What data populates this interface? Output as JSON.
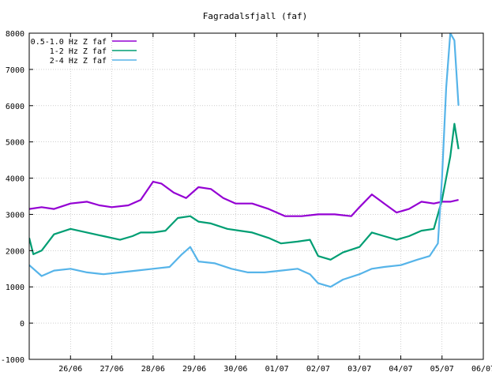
{
  "chart_data": {
    "type": "line",
    "title": "Fagradalsfjall (faf)",
    "xlabel": "",
    "ylabel": "",
    "ylim": [
      -1000,
      8000
    ],
    "yticks": [
      -1000,
      0,
      1000,
      2000,
      3000,
      4000,
      5000,
      6000,
      7000,
      8000
    ],
    "xlim_days": [
      0,
      11
    ],
    "xticks": [
      {
        "label": "26/06",
        "day": 1
      },
      {
        "label": "27/06",
        "day": 2
      },
      {
        "label": "28/06",
        "day": 3
      },
      {
        "label": "29/06",
        "day": 4
      },
      {
        "label": "30/06",
        "day": 5
      },
      {
        "label": "01/07",
        "day": 6
      },
      {
        "label": "02/07",
        "day": 7
      },
      {
        "label": "03/07",
        "day": 8
      },
      {
        "label": "04/07",
        "day": 9
      },
      {
        "label": "05/07",
        "day": 10
      },
      {
        "label": "06/07",
        "day": 11
      }
    ],
    "grid": true,
    "legend_position": "top-left",
    "series": [
      {
        "name": "0.5-1.0 Hz Z faf",
        "color": "#9400d3",
        "points": [
          [
            0.0,
            3150
          ],
          [
            0.3,
            3200
          ],
          [
            0.6,
            3150
          ],
          [
            1.0,
            3300
          ],
          [
            1.4,
            3350
          ],
          [
            1.7,
            3250
          ],
          [
            2.0,
            3200
          ],
          [
            2.4,
            3250
          ],
          [
            2.7,
            3400
          ],
          [
            3.0,
            3900
          ],
          [
            3.2,
            3850
          ],
          [
            3.5,
            3600
          ],
          [
            3.8,
            3450
          ],
          [
            4.1,
            3750
          ],
          [
            4.4,
            3700
          ],
          [
            4.7,
            3450
          ],
          [
            5.0,
            3300
          ],
          [
            5.4,
            3300
          ],
          [
            5.8,
            3150
          ],
          [
            6.2,
            2950
          ],
          [
            6.6,
            2950
          ],
          [
            7.0,
            3000
          ],
          [
            7.4,
            3000
          ],
          [
            7.8,
            2950
          ],
          [
            8.0,
            3200
          ],
          [
            8.3,
            3550
          ],
          [
            8.6,
            3300
          ],
          [
            8.9,
            3050
          ],
          [
            9.2,
            3150
          ],
          [
            9.5,
            3350
          ],
          [
            9.8,
            3300
          ],
          [
            10.0,
            3350
          ],
          [
            10.2,
            3350
          ],
          [
            10.4,
            3400
          ]
        ]
      },
      {
        "name": "1-2 Hz Z faf",
        "color": "#009e73",
        "points": [
          [
            0.0,
            2350
          ],
          [
            0.1,
            1900
          ],
          [
            0.3,
            2000
          ],
          [
            0.6,
            2450
          ],
          [
            1.0,
            2600
          ],
          [
            1.4,
            2500
          ],
          [
            1.8,
            2400
          ],
          [
            2.2,
            2300
          ],
          [
            2.5,
            2400
          ],
          [
            2.7,
            2500
          ],
          [
            3.0,
            2500
          ],
          [
            3.3,
            2550
          ],
          [
            3.6,
            2900
          ],
          [
            3.9,
            2950
          ],
          [
            4.1,
            2800
          ],
          [
            4.4,
            2750
          ],
          [
            4.8,
            2600
          ],
          [
            5.1,
            2550
          ],
          [
            5.4,
            2500
          ],
          [
            5.8,
            2350
          ],
          [
            6.1,
            2200
          ],
          [
            6.5,
            2250
          ],
          [
            6.8,
            2300
          ],
          [
            7.0,
            1850
          ],
          [
            7.3,
            1750
          ],
          [
            7.6,
            1950
          ],
          [
            8.0,
            2100
          ],
          [
            8.3,
            2500
          ],
          [
            8.6,
            2400
          ],
          [
            8.9,
            2300
          ],
          [
            9.2,
            2400
          ],
          [
            9.5,
            2550
          ],
          [
            9.8,
            2600
          ],
          [
            10.0,
            3400
          ],
          [
            10.2,
            4600
          ],
          [
            10.3,
            5500
          ],
          [
            10.4,
            4800
          ]
        ]
      },
      {
        "name": "2-4 Hz Z faf",
        "color": "#56b4e9",
        "points": [
          [
            0.0,
            1600
          ],
          [
            0.3,
            1300
          ],
          [
            0.6,
            1450
          ],
          [
            1.0,
            1500
          ],
          [
            1.4,
            1400
          ],
          [
            1.8,
            1350
          ],
          [
            2.2,
            1400
          ],
          [
            2.6,
            1450
          ],
          [
            3.0,
            1500
          ],
          [
            3.4,
            1550
          ],
          [
            3.7,
            1900
          ],
          [
            3.9,
            2100
          ],
          [
            4.1,
            1700
          ],
          [
            4.5,
            1650
          ],
          [
            4.9,
            1500
          ],
          [
            5.3,
            1400
          ],
          [
            5.7,
            1400
          ],
          [
            6.1,
            1450
          ],
          [
            6.5,
            1500
          ],
          [
            6.8,
            1350
          ],
          [
            7.0,
            1100
          ],
          [
            7.3,
            1000
          ],
          [
            7.6,
            1200
          ],
          [
            8.0,
            1350
          ],
          [
            8.3,
            1500
          ],
          [
            8.6,
            1550
          ],
          [
            9.0,
            1600
          ],
          [
            9.4,
            1750
          ],
          [
            9.7,
            1850
          ],
          [
            9.9,
            2200
          ],
          [
            10.0,
            4000
          ],
          [
            10.1,
            6500
          ],
          [
            10.2,
            8000
          ],
          [
            10.3,
            7800
          ],
          [
            10.4,
            6000
          ]
        ]
      }
    ]
  }
}
